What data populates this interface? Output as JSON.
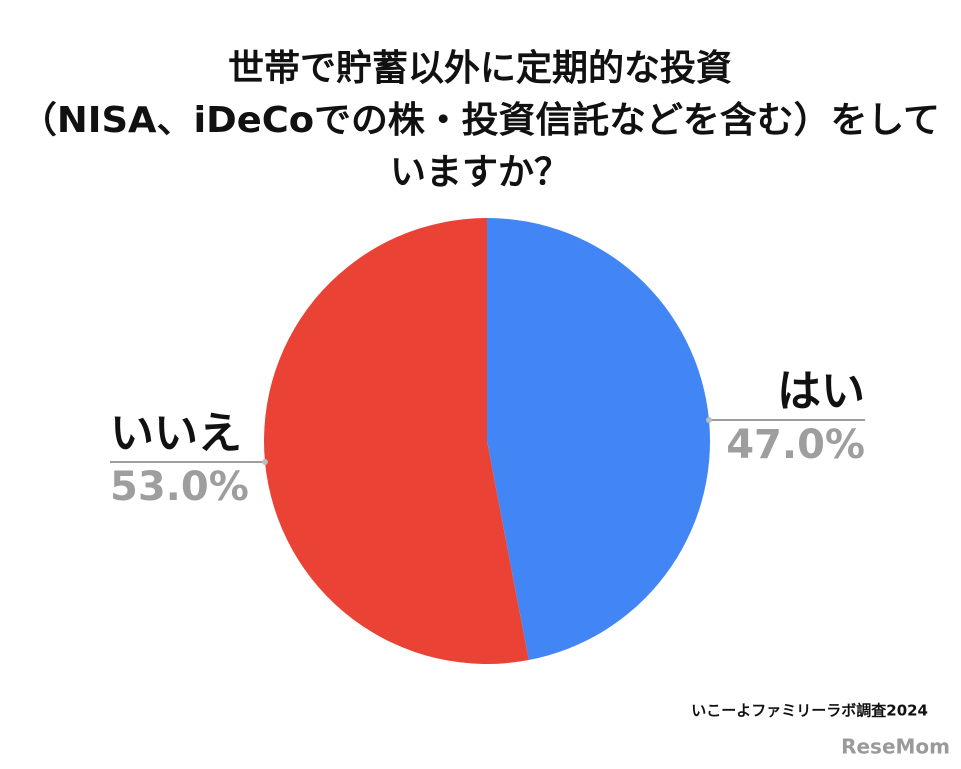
{
  "chart_data": {
    "type": "pie",
    "title": [
      "世帯で貯蓄以外に定期的な投資",
      "（NISA、iDeCoでの株・投資信託などを含む）をして",
      "いますか？"
    ],
    "categories": [
      "はい",
      "いいえ"
    ],
    "values": [
      47.0,
      53.0
    ],
    "value_labels": [
      "47.0%",
      "53.0%"
    ],
    "colors": [
      "#4285f4",
      "#ea4335"
    ],
    "source": "いこーよファミリーラボ調査2024",
    "watermark": "ReseMom"
  }
}
